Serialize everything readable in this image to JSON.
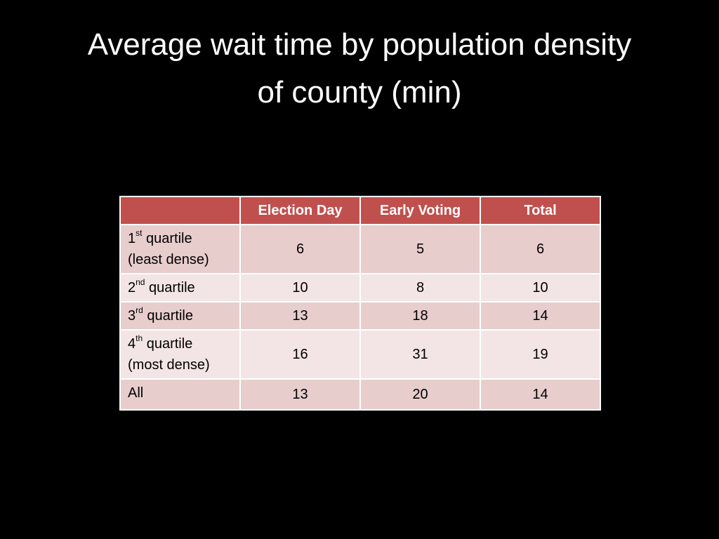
{
  "slide": {
    "title": "Average wait time by population density of county (min)"
  },
  "table": {
    "headers": [
      "",
      "Election Day",
      "Early Voting",
      "Total"
    ],
    "rows": [
      {
        "label_num": "1",
        "label_sup": "st",
        "label_rest": " quartile",
        "label_line2": "(least dense)",
        "values": [
          "6",
          "5",
          "6"
        ]
      },
      {
        "label_num": "2",
        "label_sup": "nd",
        "label_rest": " quartile",
        "label_line2": "",
        "values": [
          "10",
          "8",
          "10"
        ]
      },
      {
        "label_num": "3",
        "label_sup": "rd",
        "label_rest": " quartile",
        "label_line2": "",
        "values": [
          "13",
          "18",
          "14"
        ]
      },
      {
        "label_num": "4",
        "label_sup": "th",
        "label_rest": " quartile",
        "label_line2": "(most dense)",
        "values": [
          "16",
          "31",
          "19"
        ]
      },
      {
        "label_num": "All",
        "label_sup": "",
        "label_rest": "",
        "label_line2": "",
        "values": [
          "13",
          "20",
          "14"
        ]
      }
    ]
  },
  "colors": {
    "background": "#000000",
    "header_fill": "#c0504d",
    "row_odd": "#e8cdcd",
    "row_even": "#f3e5e5"
  }
}
